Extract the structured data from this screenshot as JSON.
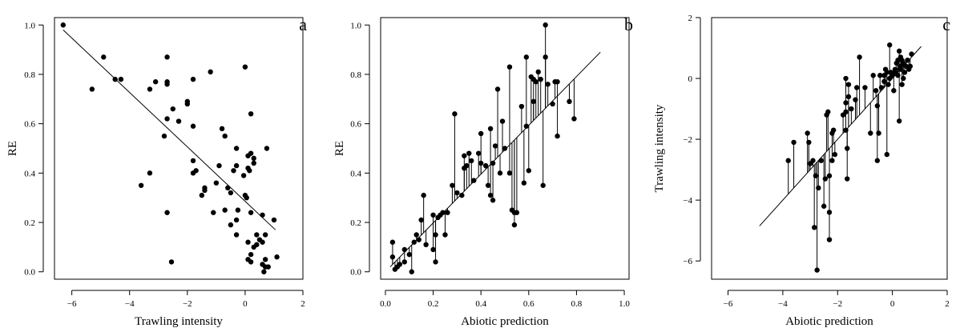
{
  "chart_data": [
    {
      "type": "scatter",
      "panel_letter": "a",
      "xlabel": "Trawling intensity",
      "ylabel": "RE",
      "xlim": [
        -6.6,
        2.0
      ],
      "ylim": [
        -0.03,
        1.03
      ],
      "xticks": [
        -6,
        -4,
        -2,
        0,
        2
      ],
      "xtick_labels": [
        "−6",
        "−4",
        "−2",
        "0",
        "2"
      ],
      "yticks": [
        0.0,
        0.2,
        0.4,
        0.6,
        0.8,
        1.0
      ],
      "ytick_labels": [
        "0.0",
        "0.2",
        "0.4",
        "0.6",
        "0.8",
        "1.0"
      ],
      "fit_line": {
        "x1": -6.3,
        "y1": 0.98,
        "x2": 1.05,
        "y2": 0.17
      },
      "residual_lines": false,
      "points": [
        [
          -6.3,
          1.0
        ],
        [
          -5.3,
          0.74
        ],
        [
          -4.9,
          0.87
        ],
        [
          -4.5,
          0.78
        ],
        [
          -4.3,
          0.78
        ],
        [
          -3.3,
          0.74
        ],
        [
          -3.1,
          0.77
        ],
        [
          -2.7,
          0.87
        ],
        [
          -2.7,
          0.77
        ],
        [
          -2.7,
          0.76
        ],
        [
          -2.5,
          0.66
        ],
        [
          -2.3,
          0.61
        ],
        [
          -2.7,
          0.62
        ],
        [
          -2.8,
          0.55
        ],
        [
          -2.0,
          0.69
        ],
        [
          -2.0,
          0.68
        ],
        [
          -1.8,
          0.78
        ],
        [
          -1.8,
          0.59
        ],
        [
          -1.2,
          0.81
        ],
        [
          0.0,
          0.83
        ],
        [
          -3.6,
          0.35
        ],
        [
          -3.3,
          0.4
        ],
        [
          -2.7,
          0.24
        ],
        [
          -2.55,
          0.04
        ],
        [
          -1.8,
          0.45
        ],
        [
          -1.8,
          0.4
        ],
        [
          -1.7,
          0.41
        ],
        [
          -1.5,
          0.31
        ],
        [
          -1.4,
          0.34
        ],
        [
          -1.4,
          0.33
        ],
        [
          -1.1,
          0.24
        ],
        [
          -1.0,
          0.36
        ],
        [
          -0.9,
          0.43
        ],
        [
          -0.8,
          0.58
        ],
        [
          -0.7,
          0.55
        ],
        [
          -0.7,
          0.25
        ],
        [
          -0.6,
          0.34
        ],
        [
          -0.5,
          0.32
        ],
        [
          -0.5,
          0.19
        ],
        [
          -0.4,
          0.41
        ],
        [
          -0.3,
          0.5
        ],
        [
          -0.3,
          0.21
        ],
        [
          -0.3,
          0.15
        ],
        [
          -0.3,
          0.43
        ],
        [
          -0.25,
          0.25
        ],
        [
          -0.05,
          0.39
        ],
        [
          0.0,
          0.31
        ],
        [
          0.05,
          0.3
        ],
        [
          0.1,
          0.47
        ],
        [
          0.1,
          0.42
        ],
        [
          0.15,
          0.41
        ],
        [
          0.2,
          0.48
        ],
        [
          0.2,
          0.64
        ],
        [
          0.2,
          0.24
        ],
        [
          0.3,
          0.44
        ],
        [
          0.3,
          0.46
        ],
        [
          0.1,
          0.12
        ],
        [
          0.1,
          0.05
        ],
        [
          0.2,
          0.04
        ],
        [
          0.2,
          0.07
        ],
        [
          0.3,
          0.1
        ],
        [
          0.4,
          0.15
        ],
        [
          0.4,
          0.11
        ],
        [
          0.5,
          0.13
        ],
        [
          0.6,
          0.12
        ],
        [
          0.6,
          0.23
        ],
        [
          0.6,
          0.03
        ],
        [
          0.7,
          0.02
        ],
        [
          0.7,
          0.05
        ],
        [
          0.7,
          0.15
        ],
        [
          0.8,
          0.02
        ],
        [
          0.75,
          0.5
        ],
        [
          1.0,
          0.21
        ],
        [
          1.1,
          0.06
        ],
        [
          0.65,
          0.0
        ]
      ]
    },
    {
      "type": "scatter",
      "panel_letter": "b",
      "xlabel": "Abiotic prediction",
      "ylabel": "RE",
      "xlim": [
        -0.02,
        1.02
      ],
      "ylim": [
        -0.03,
        1.03
      ],
      "xticks": [
        0.0,
        0.2,
        0.4,
        0.6,
        0.8,
        1.0
      ],
      "xtick_labels": [
        "0.0",
        "0.2",
        "0.4",
        "0.6",
        "0.8",
        "1.0"
      ],
      "yticks": [
        0.0,
        0.2,
        0.4,
        0.6,
        0.8,
        1.0
      ],
      "ytick_labels": [
        "0.0",
        "0.2",
        "0.4",
        "0.6",
        "0.8",
        "1.0"
      ],
      "fit_line": {
        "x1": 0.02,
        "y1": 0.02,
        "x2": 0.9,
        "y2": 0.89
      },
      "residual_lines": true,
      "points": [
        [
          0.03,
          0.12
        ],
        [
          0.03,
          0.06
        ],
        [
          0.04,
          0.01
        ],
        [
          0.05,
          0.02
        ],
        [
          0.06,
          0.03
        ],
        [
          0.08,
          0.04
        ],
        [
          0.08,
          0.09
        ],
        [
          0.1,
          0.07
        ],
        [
          0.11,
          0.0
        ],
        [
          0.12,
          0.12
        ],
        [
          0.13,
          0.15
        ],
        [
          0.14,
          0.13
        ],
        [
          0.15,
          0.21
        ],
        [
          0.16,
          0.31
        ],
        [
          0.17,
          0.11
        ],
        [
          0.2,
          0.23
        ],
        [
          0.2,
          0.09
        ],
        [
          0.21,
          0.15
        ],
        [
          0.21,
          0.04
        ],
        [
          0.22,
          0.22
        ],
        [
          0.23,
          0.23
        ],
        [
          0.24,
          0.24
        ],
        [
          0.25,
          0.15
        ],
        [
          0.26,
          0.24
        ],
        [
          0.28,
          0.35
        ],
        [
          0.29,
          0.64
        ],
        [
          0.3,
          0.32
        ],
        [
          0.32,
          0.31
        ],
        [
          0.33,
          0.42
        ],
        [
          0.33,
          0.47
        ],
        [
          0.34,
          0.43
        ],
        [
          0.35,
          0.48
        ],
        [
          0.36,
          0.45
        ],
        [
          0.37,
          0.37
        ],
        [
          0.39,
          0.48
        ],
        [
          0.4,
          0.44
        ],
        [
          0.4,
          0.56
        ],
        [
          0.42,
          0.43
        ],
        [
          0.43,
          0.35
        ],
        [
          0.44,
          0.31
        ],
        [
          0.44,
          0.58
        ],
        [
          0.45,
          0.44
        ],
        [
          0.46,
          0.51
        ],
        [
          0.47,
          0.74
        ],
        [
          0.48,
          0.4
        ],
        [
          0.49,
          0.61
        ],
        [
          0.5,
          0.5
        ],
        [
          0.52,
          0.83
        ],
        [
          0.52,
          0.4
        ],
        [
          0.54,
          0.24
        ],
        [
          0.54,
          0.19
        ],
        [
          0.55,
          0.24
        ],
        [
          0.53,
          0.25
        ],
        [
          0.57,
          0.67
        ],
        [
          0.58,
          0.36
        ],
        [
          0.59,
          0.87
        ],
        [
          0.59,
          0.59
        ],
        [
          0.6,
          0.41
        ],
        [
          0.61,
          0.79
        ],
        [
          0.62,
          0.69
        ],
        [
          0.62,
          0.78
        ],
        [
          0.63,
          0.77
        ],
        [
          0.64,
          0.81
        ],
        [
          0.65,
          0.78
        ],
        [
          0.66,
          0.35
        ],
        [
          0.67,
          1.0
        ],
        [
          0.67,
          0.87
        ],
        [
          0.68,
          0.76
        ],
        [
          0.7,
          0.68
        ],
        [
          0.71,
          0.77
        ],
        [
          0.72,
          0.77
        ],
        [
          0.72,
          0.55
        ],
        [
          0.77,
          0.69
        ],
        [
          0.79,
          0.62
        ],
        [
          0.45,
          0.29
        ]
      ]
    },
    {
      "type": "scatter",
      "panel_letter": "c",
      "xlabel": "Abiotic prediction",
      "ylabel": "Trawling intensity",
      "xlim": [
        -6.6,
        2.0
      ],
      "ylim": [
        -6.6,
        2.0
      ],
      "xticks": [
        -6,
        -4,
        -2,
        0,
        2
      ],
      "xtick_labels": [
        "−6",
        "−4",
        "−2",
        "0",
        "2"
      ],
      "yticks": [
        -6,
        -4,
        -2,
        0,
        2
      ],
      "ytick_labels": [
        "−6",
        "−4",
        "−2",
        "0",
        "2"
      ],
      "fit_line": {
        "x1": -4.85,
        "y1": -4.85,
        "x2": 1.05,
        "y2": 1.05
      },
      "residual_lines": true,
      "points": [
        [
          -3.8,
          -2.7
        ],
        [
          -3.6,
          -2.1
        ],
        [
          -3.1,
          -1.8
        ],
        [
          -3.05,
          -2.1
        ],
        [
          -3.0,
          -2.8
        ],
        [
          -2.9,
          -2.7
        ],
        [
          -2.85,
          -4.9
        ],
        [
          -2.8,
          -3.2
        ],
        [
          -2.75,
          -6.3
        ],
        [
          -2.7,
          -3.6
        ],
        [
          -2.6,
          -2.7
        ],
        [
          -2.5,
          -4.2
        ],
        [
          -2.45,
          -3.3
        ],
        [
          -2.4,
          -1.2
        ],
        [
          -2.35,
          -1.1
        ],
        [
          -2.3,
          -5.3
        ],
        [
          -2.3,
          -4.4
        ],
        [
          -2.3,
          -3.2
        ],
        [
          -2.2,
          -1.8
        ],
        [
          -2.2,
          -2.7
        ],
        [
          -2.1,
          -2.5
        ],
        [
          -2.15,
          -1.7
        ],
        [
          -1.8,
          -1.2
        ],
        [
          -1.7,
          -1.1
        ],
        [
          -1.65,
          -3.3
        ],
        [
          -1.7,
          -1.7
        ],
        [
          -1.7,
          -0.8
        ],
        [
          -1.65,
          -2.3
        ],
        [
          -1.7,
          0.0
        ],
        [
          -1.6,
          -0.2
        ],
        [
          -1.6,
          -0.6
        ],
        [
          -1.5,
          -1.0
        ],
        [
          -1.35,
          -0.7
        ],
        [
          -1.3,
          -0.3
        ],
        [
          -1.2,
          0.7
        ],
        [
          -1.0,
          -0.3
        ],
        [
          -0.8,
          -1.8
        ],
        [
          -0.7,
          0.1
        ],
        [
          -0.6,
          -0.4
        ],
        [
          -0.55,
          -0.9
        ],
        [
          -0.5,
          -1.8
        ],
        [
          -0.55,
          -2.7
        ],
        [
          -0.45,
          0.1
        ],
        [
          -0.4,
          -0.3
        ],
        [
          -0.3,
          -0.1
        ],
        [
          -0.3,
          0.1
        ],
        [
          -0.25,
          0.3
        ],
        [
          -0.2,
          0.2
        ],
        [
          -0.15,
          -0.2
        ],
        [
          -0.1,
          0.0
        ],
        [
          -0.1,
          1.1
        ],
        [
          -0.05,
          0.2
        ],
        [
          0.0,
          0.1
        ],
        [
          0.05,
          -0.4
        ],
        [
          0.1,
          0.3
        ],
        [
          0.1,
          0.2
        ],
        [
          0.15,
          0.5
        ],
        [
          0.2,
          0.6
        ],
        [
          0.2,
          0.1
        ],
        [
          0.25,
          0.9
        ],
        [
          0.25,
          -1.4
        ],
        [
          0.3,
          0.3
        ],
        [
          0.3,
          0.4
        ],
        [
          0.35,
          0.6
        ],
        [
          0.35,
          -0.2
        ],
        [
          0.4,
          0.5
        ],
        [
          0.45,
          0.2
        ],
        [
          0.5,
          0.4
        ],
        [
          0.55,
          0.6
        ],
        [
          0.6,
          0.3
        ],
        [
          0.65,
          0.4
        ],
        [
          0.7,
          0.8
        ],
        [
          -0.2,
          -2.5
        ],
        [
          0.4,
          0.0
        ],
        [
          0.3,
          0.7
        ]
      ]
    }
  ]
}
